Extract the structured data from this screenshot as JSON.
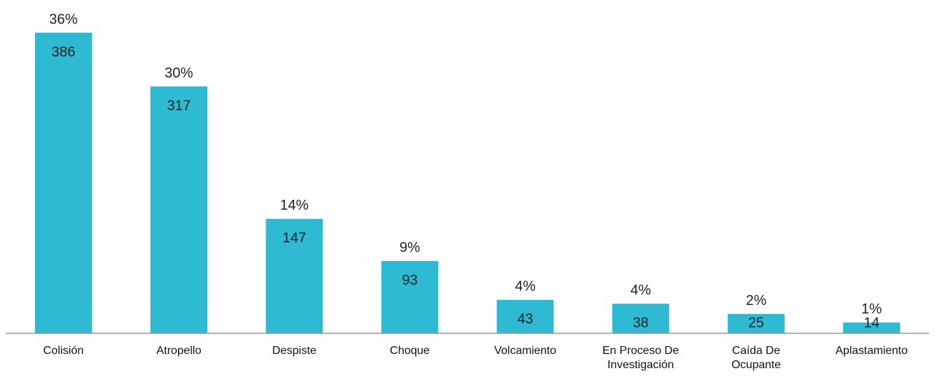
{
  "chart_data": {
    "type": "bar",
    "categories": [
      "Colisión",
      "Atropello",
      "Despiste",
      "Choque",
      "Volcamiento",
      "En Proceso De Investigación",
      "Caída De Ocupante",
      "Aplastamiento"
    ],
    "values": [
      386,
      317,
      147,
      93,
      43,
      38,
      25,
      14
    ],
    "percent_labels": [
      "36%",
      "30%",
      "14%",
      "9%",
      "4%",
      "4%",
      "2%",
      "1%"
    ],
    "color": "#2fbad4",
    "ylim": [
      0,
      386
    ]
  }
}
